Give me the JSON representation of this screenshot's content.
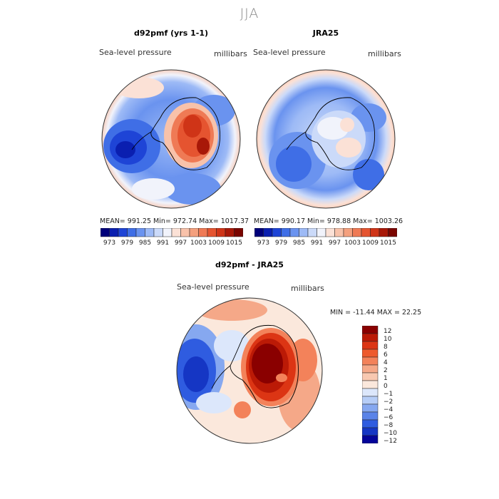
{
  "season": "JJA",
  "panels": [
    {
      "title": "d92pmf (yrs 1-1)",
      "variable": "Sea-level pressure",
      "units": "millibars",
      "stats": "MEAN= 991.25   Min= 972.74   Max= 1017.37"
    },
    {
      "title": "JRA25",
      "variable": "Sea-level pressure",
      "units": "millibars",
      "stats": "MEAN= 990.17   Min= 978.88   Max= 1003.26"
    }
  ],
  "diff_panel": {
    "title": "d92pmf - JRA25",
    "variable": "Sea-level pressure",
    "units": "millibars",
    "stats": "MIN = -11.44 MAX =  22.25"
  },
  "horiz_colorbar": {
    "tick_labels": [
      "973",
      "979",
      "985",
      "991",
      "997",
      "1003",
      "1009",
      "1015"
    ],
    "colors": [
      "#00007a",
      "#0a1fb0",
      "#1e44d6",
      "#3f6ee6",
      "#6a93ef",
      "#9dbaf6",
      "#cbdaf9",
      "#f1f3fb",
      "#fbe1d6",
      "#f8c2aa",
      "#f4a07e",
      "#ef7a55",
      "#e55430",
      "#cf3417",
      "#a81808",
      "#7a0500"
    ]
  },
  "vert_colorbar": {
    "labels": [
      "12",
      "10",
      "8",
      "6",
      "4",
      "2",
      "1",
      "0",
      "−1",
      "−2",
      "−4",
      "−6",
      "−8",
      "−10",
      "−12"
    ],
    "colors": [
      "#8a0000",
      "#bb1a06",
      "#dc3514",
      "#ee5a2d",
      "#f3825a",
      "#f5a888",
      "#f8c8b0",
      "#fbe8dc",
      "#dce7fb",
      "#b6cdf7",
      "#86a8f0",
      "#5a83e8",
      "#2f5ce0",
      "#1536c4",
      "#04049a"
    ]
  }
}
